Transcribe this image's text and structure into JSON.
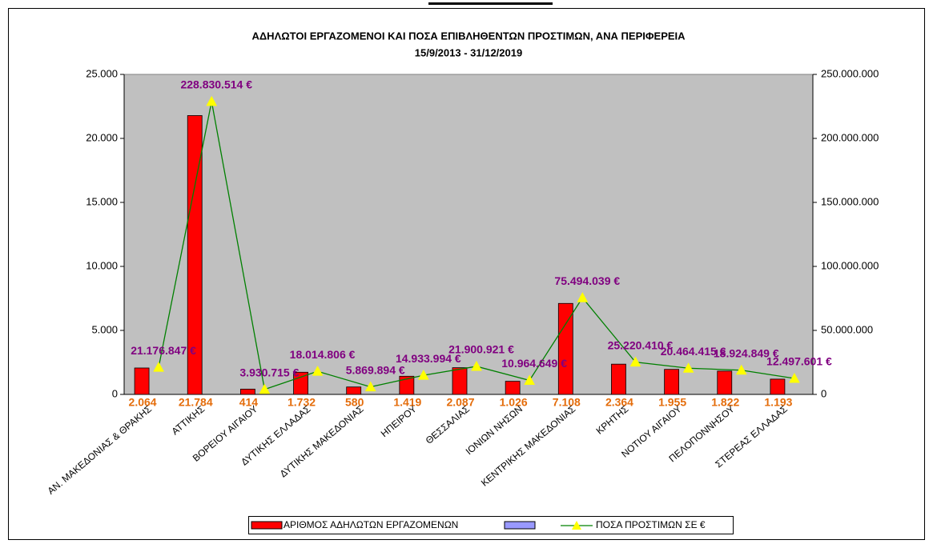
{
  "chart_data": {
    "type": "bar_line",
    "title": "ΑΔΗΛΩΤΟΙ ΕΡΓΑΖΟΜΕΝΟΙ ΚΑΙ ΠΟΣΑ ΕΠΙΒΛΗΘΕΝΤΩΝ ΠΡΟΣΤΙΜΩΝ, ΑΝΑ ΠΕΡΙΦΕΡΕΙΑ",
    "subtitle": "15/9/2013 - 31/12/2019",
    "categories": [
      "ΑΝ. ΜΑΚΕΔΟΝΙΑΣ & ΘΡΑΚΗΣ",
      "ΑΤΤΙΚΗΣ",
      "ΒΟΡΕΙΟΥ ΑΙΓΑΙΟΥ",
      "ΔΥΤΙΚΗΣ ΕΛΛΑΔΑΣ",
      "ΔΥΤΙΚΗΣ ΜΑΚΕΔΟΝΙΑΣ",
      "ΗΠΕΙΡΟΥ",
      "ΘΕΣΣΑΛΙΑΣ",
      "ΙΟΝΙΩΝ ΝΗΣΩΝ",
      "ΚΕΝΤΡΙΚΗΣ ΜΑΚΕΔΟΝΙΑΣ",
      "ΚΡΗΤΗΣ",
      "ΝΟΤΙΟΥ ΑΙΓΑΙΟΥ",
      "ΠΕΛΟΠΟΝΝΗΣΟΥ",
      "ΣΤΕΡΕΑΣ ΕΛΛΑΔΑΣ"
    ],
    "series": [
      {
        "name": "ΑΡΙΘΜΟΣ ΑΔΗΛΩΤΩΝ ΕΡΓΑΖΟΜΕΝΩΝ",
        "color": "#ff0000",
        "axis": "y",
        "values": [
          2064,
          21784,
          414,
          1732,
          580,
          1419,
          2087,
          1026,
          7108,
          2364,
          1955,
          1822,
          1193
        ],
        "value_labels": [
          "2.064",
          "21.784",
          "414",
          "1.732",
          "580",
          "1.419",
          "2.087",
          "1.026",
          "7.108",
          "2.364",
          "1.955",
          "1.822",
          "1.193"
        ]
      },
      {
        "name": "ΠΟΣΑ ΠΡΟΣΤΙΜΩΝ ΣΕ €",
        "color": "#008000",
        "marker_color": "#ffff00",
        "axis": "y2",
        "values": [
          21176847,
          228830514,
          3930715,
          18014806,
          5869894,
          14933994,
          21900921,
          10964649,
          75494039,
          25220410,
          20464415,
          18924849,
          12497601
        ],
        "value_labels": [
          "21.176.847 €",
          "228.830.514 €",
          "3.930.715 €",
          "18.014.806 €",
          "5.869.894 €",
          "14.933.994 €",
          "21.900.921 €",
          "10.964.649 €",
          "75.494.039 €",
          "25.220.410 €",
          "20.464.415 €",
          "18.924.849 €",
          "12.497.601 €"
        ]
      }
    ],
    "ylim": [
      0,
      25000
    ],
    "yticks": [
      0,
      {
        "value": 5000,
        "label": "5.000"
      },
      {
        "value": 10000,
        "label": "10.000"
      },
      {
        "value": 15000,
        "label": "15.000"
      },
      {
        "value": 20000,
        "label": "20.000"
      },
      {
        "value": 25000,
        "label": "25.000"
      }
    ],
    "y2lim": [
      0,
      250000000
    ],
    "y2ticks": [
      0,
      {
        "value": 50000000,
        "label": "50.000.000"
      },
      {
        "value": 100000000,
        "label": "100.000.000"
      },
      {
        "value": 150000000,
        "label": "150.000.000"
      },
      {
        "value": 200000000,
        "label": "200.000.000"
      },
      {
        "value": 250000000,
        "label": "250.000.000"
      }
    ]
  }
}
